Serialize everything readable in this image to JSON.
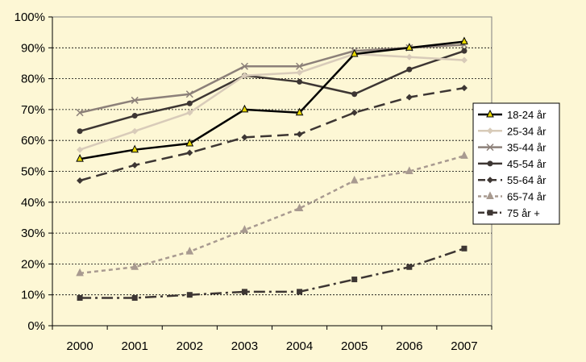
{
  "chart_data": {
    "type": "line",
    "title": "",
    "xlabel": "",
    "ylabel": "",
    "x": [
      "2000",
      "2001",
      "2002",
      "2003",
      "2004",
      "2005",
      "2006",
      "2007"
    ],
    "ylim": [
      0,
      100
    ],
    "yticks": [
      "0%",
      "10%",
      "20%",
      "30%",
      "40%",
      "50%",
      "60%",
      "70%",
      "80%",
      "90%",
      "100%"
    ],
    "grid": "horizontal-dashed",
    "legend_position": "right",
    "background": "#fdf7d5",
    "series": [
      {
        "name": "18-24 år",
        "values": [
          54,
          57,
          59,
          70,
          69,
          88,
          90,
          92
        ],
        "color": "#000000",
        "dash": "solid",
        "marker": "triangle"
      },
      {
        "name": "25-34 år",
        "values": [
          57,
          63,
          69,
          81,
          82,
          88,
          87,
          86
        ],
        "color": "#d8cbb9",
        "dash": "solid",
        "marker": "diamond"
      },
      {
        "name": "35-44 år",
        "values": [
          69,
          73,
          75,
          84,
          84,
          89,
          90,
          91
        ],
        "color": "#8c8079",
        "dash": "solid",
        "marker": "x"
      },
      {
        "name": "45-54 år",
        "values": [
          63,
          68,
          72,
          81,
          79,
          75,
          83,
          89
        ],
        "color": "#3d3633",
        "dash": "solid",
        "marker": "circle"
      },
      {
        "name": "55-64 år",
        "values": [
          47,
          52,
          56,
          61,
          62,
          69,
          74,
          77
        ],
        "color": "#3d3633",
        "dash": "longdash",
        "marker": "diamond"
      },
      {
        "name": "65-74 år",
        "values": [
          17,
          19,
          24,
          31,
          38,
          47,
          50,
          55
        ],
        "color": "#a89a90",
        "dash": "shortdash",
        "marker": "triangle"
      },
      {
        "name": "75 år +",
        "values": [
          9,
          9,
          10,
          11,
          11,
          15,
          19,
          25
        ],
        "color": "#3d3633",
        "dash": "dashdot",
        "marker": "square"
      }
    ]
  }
}
